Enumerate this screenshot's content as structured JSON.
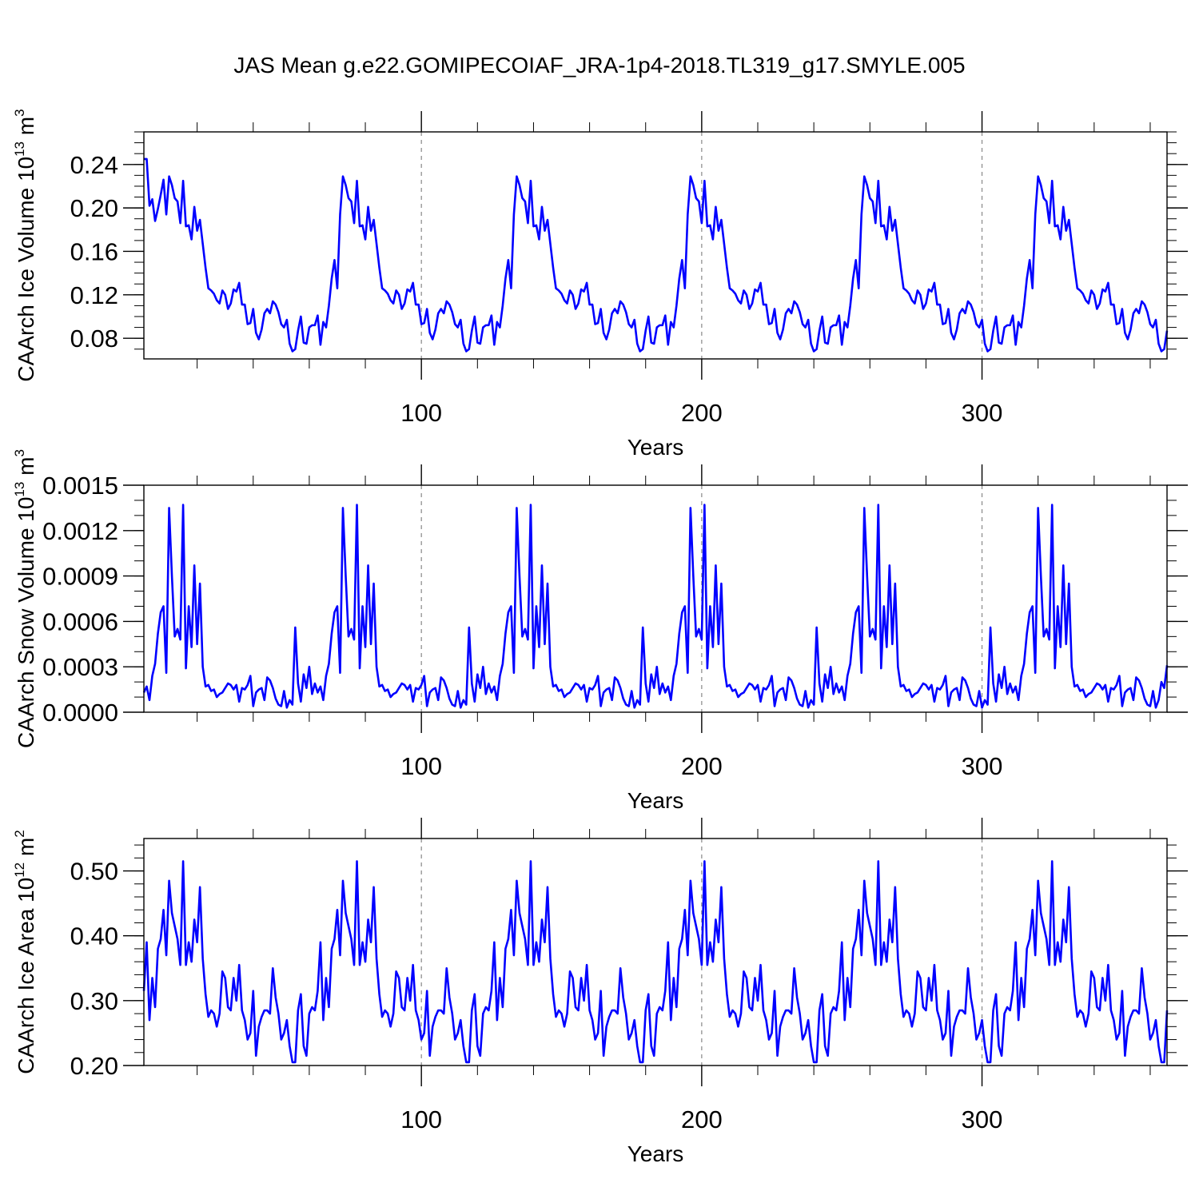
{
  "title": "JAS Mean g.e22.GOMIPECOIAF_JRA-1p4-2018.TL319_g17.SMYLE.005",
  "colors": {
    "line": "#0000ff",
    "axis": "#000000",
    "refline": "#888888",
    "background": "#ffffff"
  },
  "chart_data": [
    {
      "type": "line",
      "ylabel": "CAArch Ice Volume 10",
      "ylabel_sup": "13",
      "ylabel_unit": " m",
      "ylabel_unit_sup": "3",
      "xlabel": "Years",
      "xlim": [
        1,
        366
      ],
      "ylim": [
        0.061,
        0.27
      ],
      "x_ticks": [
        100,
        200,
        300
      ],
      "x_tick_labels": [
        "100",
        "200",
        "300"
      ],
      "y_ticks": [
        0.08,
        0.12,
        0.16,
        0.2,
        0.24
      ],
      "y_tick_labels": [
        "0.08",
        "0.12",
        "0.16",
        "0.20",
        "0.24"
      ],
      "y_minor_step": 0.01,
      "ref_lines_x": [
        100,
        200,
        300
      ],
      "series": [
        {
          "name": "CAArch Ice Volume",
          "x_start": 1,
          "cycle_start": 8,
          "cycle_length": 62,
          "initial_values": [
            0.245,
            0.245,
            0.202,
            0.208,
            0.188,
            0.199,
            0.212,
            0.226
          ],
          "cycle_values": [
            0.194,
            0.229,
            0.221,
            0.209,
            0.206,
            0.186,
            0.225,
            0.183,
            0.184,
            0.171,
            0.201,
            0.179,
            0.189,
            0.167,
            0.145,
            0.126,
            0.124,
            0.121,
            0.115,
            0.112,
            0.124,
            0.12,
            0.107,
            0.112,
            0.125,
            0.123,
            0.131,
            0.111,
            0.111,
            0.093,
            0.094,
            0.107,
            0.085,
            0.079,
            0.088,
            0.103,
            0.107,
            0.103,
            0.114,
            0.111,
            0.104,
            0.093,
            0.09,
            0.097,
            0.075,
            0.068,
            0.07,
            0.087,
            0.1,
            0.076,
            0.075,
            0.09,
            0.092,
            0.092,
            0.101,
            0.074,
            0.095,
            0.09,
            0.11,
            0.135,
            0.152,
            0.126
          ],
          "tail_values": []
        }
      ]
    },
    {
      "type": "line",
      "ylabel": "CAArch Snow Volume 10",
      "ylabel_sup": "13",
      "ylabel_unit": " m",
      "ylabel_unit_sup": "3",
      "xlabel": "Years",
      "xlim": [
        1,
        366
      ],
      "ylim": [
        0.0,
        0.0015
      ],
      "x_ticks": [
        100,
        200,
        300
      ],
      "x_tick_labels": [
        "100",
        "200",
        "300"
      ],
      "y_ticks": [
        0.0,
        0.0003,
        0.0006,
        0.0009,
        0.0012,
        0.0015
      ],
      "y_tick_labels": [
        "0.0000",
        "0.0003",
        "0.0006",
        "0.0009",
        "0.0012",
        "0.0015"
      ],
      "y_minor_step": 0.0001,
      "ref_lines_x": [
        100,
        200,
        300
      ],
      "series": [
        {
          "name": "CAArch Snow Volume",
          "x_start": 1,
          "cycle_start": 1,
          "cycle_length": 62,
          "initial_values": [],
          "cycle_values": [
            0.00013,
            0.00017,
            8e-05,
            0.00024,
            0.00032,
            0.00052,
            0.00066,
            0.0007,
            0.00026,
            0.00135,
            0.0009,
            0.0005,
            0.00055,
            0.00048,
            0.00137,
            0.00029,
            0.0007,
            0.00043,
            0.00097,
            0.00045,
            0.00085,
            0.0003,
            0.00017,
            0.00018,
            0.00014,
            0.00015,
            0.0001,
            0.00012,
            0.00013,
            0.00016,
            0.00019,
            0.00018,
            0.00015,
            0.00018,
            7e-05,
            0.00016,
            0.00015,
            0.00018,
            0.00024,
            4e-05,
            0.00013,
            0.00015,
            0.00016,
            8e-05,
            0.00023,
            0.00021,
            0.00016,
            9e-05,
            5e-05,
            4e-05,
            0.00014,
            3e-05,
            8e-05,
            5e-05,
            0.00056,
            0.00019,
            7e-05,
            0.00025,
            0.00016,
            0.0003,
            0.00012,
            0.00019
          ],
          "tail_values": [
            0.0002,
            0.00016,
            0.00031
          ]
        }
      ]
    },
    {
      "type": "line",
      "ylabel": "CAArch Ice Area 10",
      "ylabel_sup": "12",
      "ylabel_unit": " m",
      "ylabel_unit_sup": "2",
      "xlabel": "Years",
      "xlim": [
        1,
        366
      ],
      "ylim": [
        0.2,
        0.55
      ],
      "x_ticks": [
        100,
        200,
        300
      ],
      "x_tick_labels": [
        "100",
        "200",
        "300"
      ],
      "y_ticks": [
        0.2,
        0.3,
        0.4,
        0.5
      ],
      "y_tick_labels": [
        "0.20",
        "0.30",
        "0.40",
        "0.50"
      ],
      "y_minor_step": 0.02,
      "ref_lines_x": [
        100,
        200,
        300
      ],
      "series": [
        {
          "name": "CAArch Ice Area",
          "x_start": 1,
          "cycle_start": 1,
          "cycle_length": 62,
          "initial_values": [],
          "cycle_values": [
            0.315,
            0.39,
            0.27,
            0.335,
            0.29,
            0.38,
            0.395,
            0.44,
            0.37,
            0.485,
            0.435,
            0.415,
            0.395,
            0.355,
            0.515,
            0.355,
            0.39,
            0.36,
            0.425,
            0.39,
            0.475,
            0.365,
            0.31,
            0.275,
            0.285,
            0.28,
            0.26,
            0.28,
            0.345,
            0.335,
            0.29,
            0.285,
            0.335,
            0.3,
            0.355,
            0.285,
            0.27,
            0.24,
            0.25,
            0.315,
            0.215,
            0.26,
            0.275,
            0.285,
            0.285,
            0.28,
            0.35,
            0.305,
            0.28,
            0.24,
            0.25,
            0.27,
            0.23,
            0.205,
            0.205,
            0.285,
            0.31,
            0.23,
            0.215,
            0.28,
            0.29,
            0.285
          ],
          "tail_values": []
        }
      ]
    }
  ]
}
